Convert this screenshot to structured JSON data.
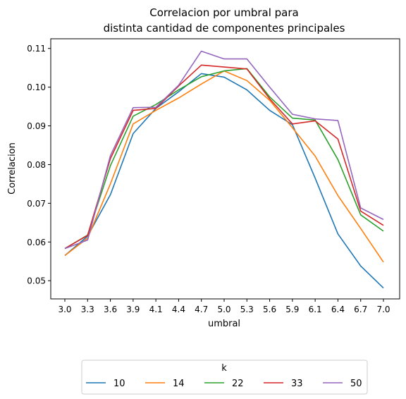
{
  "chart_data": {
    "type": "line",
    "title": [
      "Correlacion por umbral para",
      "distinta cantidad de componentes principales"
    ],
    "xlabel": "umbral",
    "ylabel": "Correlacion",
    "categories": [
      "3.0",
      "3.3",
      "3.6",
      "3.9",
      "4.1",
      "4.4",
      "4.7",
      "5.0",
      "5.3",
      "5.6",
      "5.9",
      "6.1",
      "6.4",
      "6.7",
      "7.0"
    ],
    "ylim": [
      0.0453,
      0.1125
    ],
    "yticks": [
      0.05,
      0.06,
      0.07,
      0.08,
      0.09,
      0.1,
      0.11
    ],
    "ytick_labels": [
      "0.05",
      "0.06",
      "0.07",
      "0.08",
      "0.09",
      "0.10",
      "0.11"
    ],
    "grid": false,
    "legend": {
      "title": "k",
      "placement": "bottom-center"
    },
    "series": [
      {
        "name": "10",
        "color": "#1f77b4",
        "values": [
          0.0565,
          0.0615,
          0.0722,
          0.088,
          0.0945,
          0.0988,
          0.1035,
          0.1026,
          0.0993,
          0.094,
          0.0903,
          0.0765,
          0.0621,
          0.0538,
          0.0481
        ]
      },
      {
        "name": "14",
        "color": "#ff7f0e",
        "values": [
          0.0565,
          0.061,
          0.075,
          0.0905,
          0.094,
          0.0972,
          0.1008,
          0.1042,
          0.1017,
          0.0966,
          0.0895,
          0.0822,
          0.072,
          0.0635,
          0.0548
        ]
      },
      {
        "name": "22",
        "color": "#2ca02c",
        "values": [
          0.0583,
          0.0618,
          0.0797,
          0.0925,
          0.0955,
          0.0993,
          0.1027,
          0.1042,
          0.1048,
          0.0975,
          0.092,
          0.0915,
          0.0813,
          0.067,
          0.0628
        ]
      },
      {
        "name": "33",
        "color": "#d62728",
        "values": [
          0.0583,
          0.0617,
          0.0815,
          0.094,
          0.0945,
          0.1003,
          0.1057,
          0.1052,
          0.1047,
          0.097,
          0.0905,
          0.0913,
          0.0866,
          0.068,
          0.0643
        ]
      },
      {
        "name": "50",
        "color": "#9467bd",
        "values": [
          0.0583,
          0.0605,
          0.0823,
          0.0947,
          0.0948,
          0.1005,
          0.1093,
          0.1073,
          0.1073,
          0.1,
          0.093,
          0.0918,
          0.0914,
          0.0688,
          0.0658
        ]
      }
    ]
  }
}
